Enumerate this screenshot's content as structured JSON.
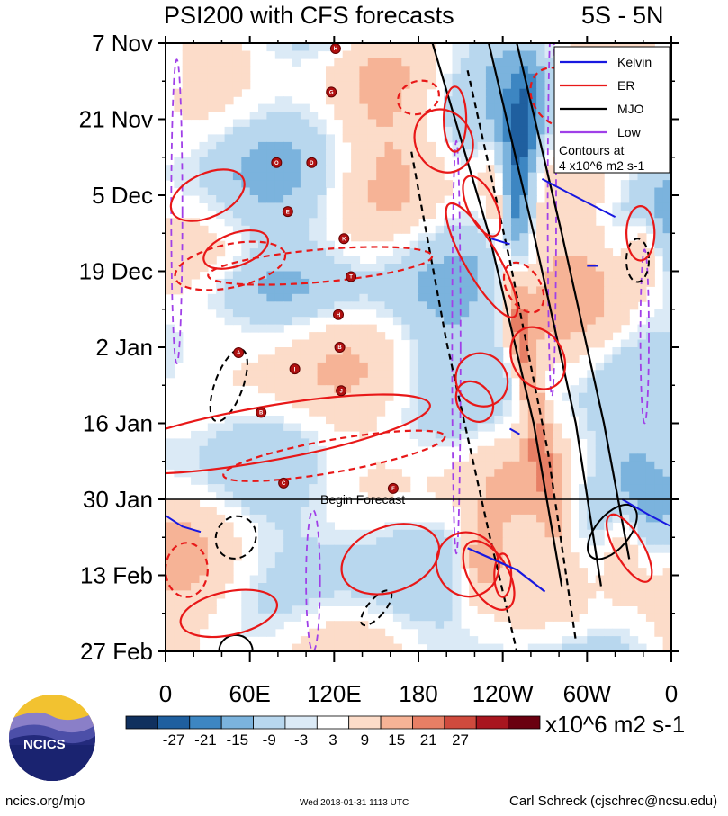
{
  "page": {
    "title_left": "PSI200 with CFS forecasts",
    "title_right": "5S - 5N",
    "footer_left": "ncics.org/mjo",
    "footer_center": "Wed 2018-01-31 1113 UTC",
    "footer_right": "Carl Schreck (cjschrec@ncsu.edu)",
    "logo_text": "NCICS",
    "begin_forecast_label": "Begin Forecast"
  },
  "chart_data": {
    "type": "heatmap",
    "title": "PSI200 with CFS forecasts",
    "region": "5S - 5N",
    "x": {
      "labels": [
        "0",
        "60E",
        "120E",
        "180",
        "120W",
        "60W",
        "0"
      ],
      "range_deg_east": [
        0,
        360
      ]
    },
    "y": {
      "labels": [
        "7 Nov",
        "21 Nov",
        "5 Dec",
        "19 Dec",
        "2 Jan",
        "16 Jan",
        "30 Jan",
        "13 Feb",
        "27 Feb"
      ],
      "range_days_from_7_Nov": [
        0,
        112
      ],
      "forecast_start_day": 84
    },
    "colorbar": {
      "labels": [
        "-27",
        "-21",
        "-15",
        "-9",
        "-3",
        "3",
        "9",
        "15",
        "21",
        "27"
      ],
      "units": "x10^6 m2 s-1",
      "colors": [
        "#10305e",
        "#1f5f9f",
        "#3d86c2",
        "#7bb3dd",
        "#b8d7ee",
        "#dbeaf6",
        "#ffffff",
        "#fcdcc9",
        "#f6b396",
        "#e77f65",
        "#cf4a3d",
        "#a8161f",
        "#6a0010"
      ]
    },
    "legend": {
      "entries": [
        {
          "name": "Kelvin",
          "color": "#1818e0"
        },
        {
          "name": "ER",
          "color": "#e81818"
        },
        {
          "name": "MJO",
          "color": "#000000"
        },
        {
          "name": "Low",
          "color": "#a040e8"
        }
      ],
      "note_line1": "Contours at",
      "note_line2": "4 x10^6 m2 s-1",
      "placement": "top-right"
    },
    "tropical_cyclones": [
      {
        "label": "H",
        "lon": 121,
        "day": 1
      },
      {
        "label": "G",
        "lon": 118,
        "day": 9
      },
      {
        "label": "O",
        "lon": 79,
        "day": 22
      },
      {
        "label": "D",
        "lon": 104,
        "day": 22
      },
      {
        "label": "E",
        "lon": 87,
        "day": 31
      },
      {
        "label": "K",
        "lon": 127,
        "day": 36
      },
      {
        "label": "T",
        "lon": 132,
        "day": 43
      },
      {
        "label": "H",
        "lon": 123,
        "day": 50
      },
      {
        "label": "B",
        "lon": 124,
        "day": 56
      },
      {
        "label": "A",
        "lon": 52,
        "day": 57
      },
      {
        "label": "I",
        "lon": 92,
        "day": 60
      },
      {
        "label": "J",
        "lon": 125,
        "day": 64
      },
      {
        "label": "B",
        "lon": 68,
        "day": 68
      },
      {
        "label": "C",
        "lon": 84,
        "day": 81
      },
      {
        "label": "F",
        "lon": 162,
        "day": 82
      }
    ]
  }
}
